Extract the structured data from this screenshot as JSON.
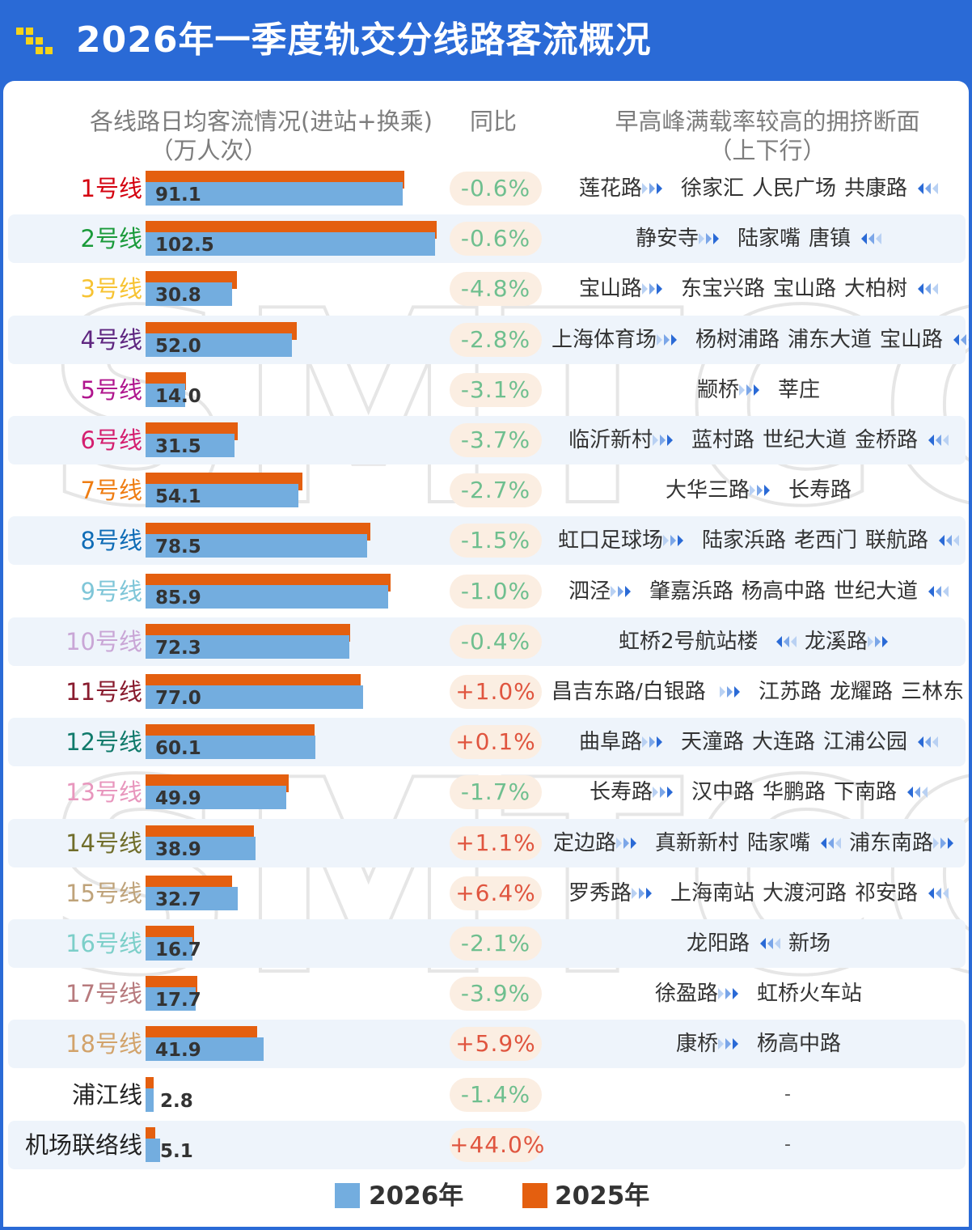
{
  "title": "2026年一季度轨交分线路客流概况",
  "headers": {
    "flow_line1": "各线路日均客流情况(进站+换乘)",
    "flow_line2": "（万人次）",
    "yoy": "同比",
    "section_line1": "早高峰满载率较高的拥挤断面",
    "section_line2": "（上下行）"
  },
  "watermark_text": "SMTCC",
  "legend": [
    {
      "label": "2026年",
      "color": "#73addf"
    },
    {
      "label": "2025年",
      "color": "#e45f0f"
    }
  ],
  "colors": {
    "bar_2026": "#73addf",
    "bar_2025": "#e45f0f",
    "yoy_negative": "#6fbf8f",
    "yoy_positive": "#e0553f",
    "header_bg": "#2a6ad6"
  },
  "chart_data": {
    "type": "bar",
    "orientation": "horizontal",
    "title": "2026年一季度轨交分线路客流概况",
    "categories": [
      "1号线",
      "2号线",
      "3号线",
      "4号线",
      "5号线",
      "6号线",
      "7号线",
      "8号线",
      "9号线",
      "10号线",
      "11号线",
      "12号线",
      "13号线",
      "14号线",
      "15号线",
      "16号线",
      "17号线",
      "18号线",
      "浦江线",
      "机场联络线"
    ],
    "series": [
      {
        "name": "2026年",
        "values": [
          91.1,
          102.5,
          30.8,
          52.0,
          14.0,
          31.5,
          54.1,
          78.5,
          85.9,
          72.3,
          77.0,
          60.1,
          49.9,
          38.9,
          32.7,
          16.7,
          17.7,
          41.9,
          2.8,
          5.1
        ]
      },
      {
        "name": "2025年",
        "values": [
          91.7,
          103.1,
          32.4,
          53.5,
          14.4,
          32.7,
          55.6,
          79.7,
          86.8,
          72.6,
          76.2,
          60.0,
          50.8,
          38.5,
          30.7,
          17.1,
          18.4,
          39.6,
          2.8,
          3.5
        ]
      }
    ],
    "value_labels": [
      "91.1",
      "102.5",
      "30.8",
      "52.0",
      "14.0",
      "31.5",
      "54.1",
      "78.5",
      "85.9",
      "72.3",
      "77.0",
      "60.1",
      "49.9",
      "38.9",
      "32.7",
      "16.7",
      "17.7",
      "41.9",
      "2.8",
      "5.1"
    ],
    "yoy": [
      "-0.6%",
      "-0.6%",
      "-4.8%",
      "-2.8%",
      "-3.1%",
      "-3.7%",
      "-2.7%",
      "-1.5%",
      "-1.0%",
      "-0.4%",
      "+1.0%",
      "+0.1%",
      "-1.7%",
      "+1.1%",
      "+6.4%",
      "-2.1%",
      "-3.9%",
      "+5.9%",
      "-1.4%",
      "+44.0%"
    ],
    "xlim": [
      0,
      110
    ],
    "legend_position": "bottom"
  },
  "line_colors": [
    "#d4000f",
    "#1a9a3a",
    "#f7c332",
    "#5f2680",
    "#b0168e",
    "#d41f6f",
    "#ef7d12",
    "#0f6cb6",
    "#7fc6d8",
    "#c9a6d6",
    "#891b2e",
    "#107a6b",
    "#e896bd",
    "#706d2a",
    "#bfa37a",
    "#7ccfc9",
    "#b77a7d",
    "#d2a36b",
    "#222222",
    "#222222"
  ],
  "sections": [
    [
      {
        "text": "莲花路",
        "dir": "down"
      },
      {
        "text": "徐家汇"
      },
      {
        "text": "人民广场"
      },
      {
        "text": "共康路",
        "dir": "up"
      }
    ],
    [
      {
        "text": "静安寺",
        "dir": "down"
      },
      {
        "text": "陆家嘴"
      },
      {
        "text": "唐镇",
        "dir": "up"
      }
    ],
    [
      {
        "text": "宝山路",
        "dir": "down"
      },
      {
        "text": "东宝兴路"
      },
      {
        "text": "宝山路"
      },
      {
        "text": "大柏树",
        "dir": "up"
      }
    ],
    [
      {
        "text": "上海体育场",
        "dir": "down"
      },
      {
        "text": "杨树浦路"
      },
      {
        "text": "浦东大道"
      },
      {
        "text": "宝山路",
        "dir": "up"
      }
    ],
    [
      {
        "text": "颛桥",
        "dir": "down"
      },
      {
        "text": "莘庄"
      }
    ],
    [
      {
        "text": "临沂新村",
        "dir": "down"
      },
      {
        "text": "蓝村路"
      },
      {
        "text": "世纪大道"
      },
      {
        "text": "金桥路",
        "dir": "up"
      }
    ],
    [
      {
        "text": "大华三路",
        "dir": "down"
      },
      {
        "text": "长寿路"
      }
    ],
    [
      {
        "text": "虹口足球场",
        "dir": "down"
      },
      {
        "text": "陆家浜路"
      },
      {
        "text": "老西门"
      },
      {
        "text": "联航路",
        "dir": "up"
      }
    ],
    [
      {
        "text": "泗泾",
        "dir": "down"
      },
      {
        "text": "肇嘉浜路"
      },
      {
        "text": "杨高中路"
      },
      {
        "text": "世纪大道",
        "dir": "up"
      }
    ],
    [
      {
        "text": "虹桥2号航站楼",
        "dir": "up"
      },
      {
        "text": "龙溪路",
        "dir": "down"
      }
    ],
    [
      {
        "text": "昌吉东路/白银路",
        "dir": "down"
      },
      {
        "text": "江苏路"
      },
      {
        "text": "龙耀路"
      },
      {
        "text": "三林东",
        "dir": "up"
      }
    ],
    [
      {
        "text": "曲阜路",
        "dir": "down"
      },
      {
        "text": "天潼路"
      },
      {
        "text": "大连路"
      },
      {
        "text": "江浦公园",
        "dir": "up"
      }
    ],
    [
      {
        "text": "长寿路",
        "dir": "down"
      },
      {
        "text": "汉中路"
      },
      {
        "text": "华鹏路"
      },
      {
        "text": "下南路",
        "dir": "up"
      }
    ],
    [
      {
        "text": "定边路",
        "dir": "down"
      },
      {
        "text": "真新新村"
      },
      {
        "text": "陆家嘴",
        "dir": "up"
      },
      {
        "text": "浦东南路",
        "dir": "down"
      }
    ],
    [
      {
        "text": "罗秀路",
        "dir": "down"
      },
      {
        "text": "上海南站"
      },
      {
        "text": "大渡河路"
      },
      {
        "text": "祁安路",
        "dir": "up"
      }
    ],
    [
      {
        "text": "龙阳路",
        "dir": "up"
      },
      {
        "text": "新场"
      }
    ],
    [
      {
        "text": "徐盈路",
        "dir": "down"
      },
      {
        "text": "虹桥火车站"
      }
    ],
    [
      {
        "text": "康桥",
        "dir": "down"
      },
      {
        "text": "杨高中路"
      }
    ],
    [],
    []
  ],
  "empty_section": "-"
}
